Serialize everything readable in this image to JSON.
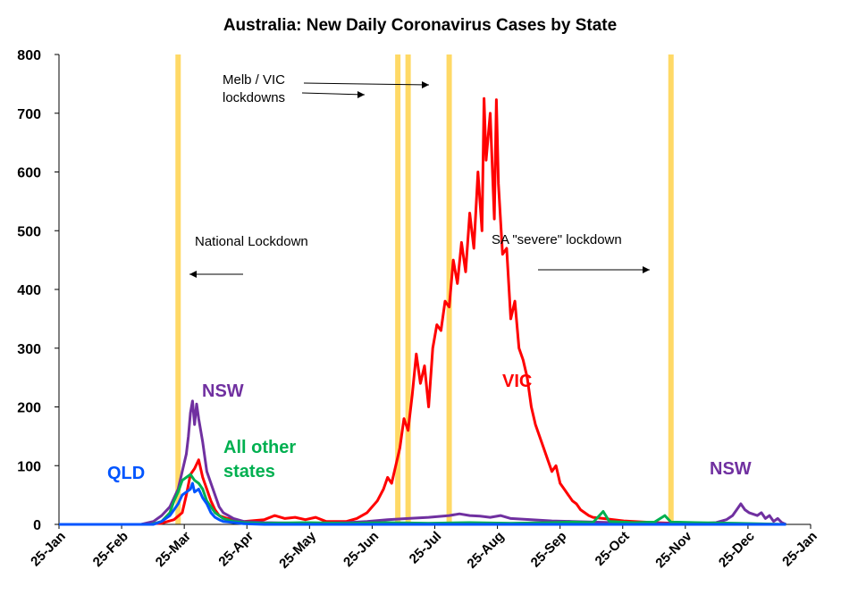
{
  "chart_data": {
    "type": "line",
    "title": "Australia: New Daily Coronavirus Cases by State",
    "xlabel": "",
    "ylabel": "",
    "ylim": [
      0,
      800
    ],
    "yticks": [
      0,
      100,
      200,
      300,
      400,
      500,
      600,
      700,
      800
    ],
    "x_tick_labels": [
      "25-Jan",
      "25-Feb",
      "25-Mar",
      "25-Apr",
      "25-May",
      "25-Jun",
      "25-Jul",
      "25-Aug",
      "25-Sep",
      "25-Oct",
      "25-Nov",
      "25-Dec",
      "25-Jan"
    ],
    "xlim_days": [
      0,
      366
    ],
    "grid": false,
    "lockdown_dates": [
      "2020-03-23",
      "2020-07-08",
      "2020-07-13",
      "2020-08-02",
      "2020-11-18"
    ],
    "annotations": [
      {
        "text": "Melb / VIC",
        "line2": "lockdowns"
      },
      {
        "text": "National Lockdown"
      },
      {
        "text": "SA \"severe\" lockdown"
      }
    ],
    "series": [
      {
        "name": "VIC",
        "color": "#ff0000",
        "points": [
          [
            0,
            0
          ],
          [
            40,
            0
          ],
          [
            50,
            2
          ],
          [
            56,
            8
          ],
          [
            60,
            20
          ],
          [
            62,
            50
          ],
          [
            64,
            85
          ],
          [
            66,
            95
          ],
          [
            68,
            110
          ],
          [
            70,
            80
          ],
          [
            72,
            60
          ],
          [
            74,
            40
          ],
          [
            76,
            25
          ],
          [
            78,
            15
          ],
          [
            82,
            10
          ],
          [
            90,
            5
          ],
          [
            100,
            8
          ],
          [
            105,
            15
          ],
          [
            110,
            10
          ],
          [
            115,
            12
          ],
          [
            120,
            8
          ],
          [
            125,
            12
          ],
          [
            130,
            5
          ],
          [
            140,
            5
          ],
          [
            145,
            10
          ],
          [
            150,
            20
          ],
          [
            155,
            40
          ],
          [
            158,
            60
          ],
          [
            160,
            80
          ],
          [
            162,
            70
          ],
          [
            164,
            100
          ],
          [
            166,
            130
          ],
          [
            168,
            180
          ],
          [
            170,
            160
          ],
          [
            172,
            220
          ],
          [
            174,
            290
          ],
          [
            176,
            240
          ],
          [
            178,
            270
          ],
          [
            180,
            200
          ],
          [
            182,
            300
          ],
          [
            184,
            340
          ],
          [
            186,
            330
          ],
          [
            188,
            380
          ],
          [
            190,
            370
          ],
          [
            192,
            450
          ],
          [
            194,
            410
          ],
          [
            196,
            480
          ],
          [
            198,
            430
          ],
          [
            200,
            530
          ],
          [
            202,
            470
          ],
          [
            204,
            600
          ],
          [
            206,
            500
          ],
          [
            207,
            725
          ],
          [
            208,
            620
          ],
          [
            210,
            700
          ],
          [
            212,
            520
          ],
          [
            213,
            723
          ],
          [
            214,
            580
          ],
          [
            216,
            460
          ],
          [
            218,
            470
          ],
          [
            220,
            350
          ],
          [
            222,
            380
          ],
          [
            224,
            300
          ],
          [
            226,
            280
          ],
          [
            228,
            250
          ],
          [
            230,
            200
          ],
          [
            232,
            170
          ],
          [
            234,
            150
          ],
          [
            236,
            130
          ],
          [
            238,
            110
          ],
          [
            240,
            90
          ],
          [
            242,
            100
          ],
          [
            244,
            70
          ],
          [
            246,
            60
          ],
          [
            248,
            50
          ],
          [
            250,
            40
          ],
          [
            252,
            35
          ],
          [
            254,
            25
          ],
          [
            256,
            20
          ],
          [
            258,
            15
          ],
          [
            260,
            12
          ],
          [
            265,
            10
          ],
          [
            270,
            8
          ],
          [
            275,
            6
          ],
          [
            280,
            5
          ],
          [
            290,
            3
          ],
          [
            300,
            2
          ],
          [
            320,
            1
          ],
          [
            350,
            0
          ]
        ]
      },
      {
        "name": "NSW",
        "color": "#7030a0",
        "points": [
          [
            0,
            0
          ],
          [
            40,
            0
          ],
          [
            46,
            5
          ],
          [
            50,
            15
          ],
          [
            54,
            30
          ],
          [
            56,
            45
          ],
          [
            58,
            60
          ],
          [
            60,
            90
          ],
          [
            62,
            120
          ],
          [
            63,
            150
          ],
          [
            64,
            190
          ],
          [
            65,
            210
          ],
          [
            66,
            170
          ],
          [
            67,
            205
          ],
          [
            68,
            180
          ],
          [
            70,
            140
          ],
          [
            72,
            90
          ],
          [
            74,
            70
          ],
          [
            76,
            50
          ],
          [
            78,
            30
          ],
          [
            80,
            20
          ],
          [
            85,
            10
          ],
          [
            90,
            5
          ],
          [
            100,
            3
          ],
          [
            120,
            2
          ],
          [
            140,
            3
          ],
          [
            150,
            5
          ],
          [
            160,
            8
          ],
          [
            170,
            10
          ],
          [
            180,
            12
          ],
          [
            190,
            15
          ],
          [
            195,
            18
          ],
          [
            200,
            15
          ],
          [
            205,
            14
          ],
          [
            210,
            12
          ],
          [
            215,
            15
          ],
          [
            220,
            10
          ],
          [
            230,
            8
          ],
          [
            240,
            6
          ],
          [
            250,
            5
          ],
          [
            260,
            4
          ],
          [
            270,
            3
          ],
          [
            290,
            2
          ],
          [
            310,
            1
          ],
          [
            320,
            3
          ],
          [
            325,
            8
          ],
          [
            328,
            15
          ],
          [
            330,
            25
          ],
          [
            332,
            35
          ],
          [
            334,
            25
          ],
          [
            336,
            20
          ],
          [
            340,
            15
          ],
          [
            342,
            20
          ],
          [
            344,
            10
          ],
          [
            346,
            15
          ],
          [
            348,
            5
          ],
          [
            350,
            10
          ],
          [
            352,
            3
          ],
          [
            354,
            0
          ]
        ]
      },
      {
        "name": "All other states",
        "color": "#00b050",
        "points": [
          [
            0,
            0
          ],
          [
            45,
            0
          ],
          [
            50,
            5
          ],
          [
            54,
            20
          ],
          [
            56,
            40
          ],
          [
            58,
            55
          ],
          [
            60,
            75
          ],
          [
            62,
            80
          ],
          [
            64,
            85
          ],
          [
            66,
            75
          ],
          [
            68,
            70
          ],
          [
            70,
            60
          ],
          [
            72,
            40
          ],
          [
            74,
            30
          ],
          [
            76,
            20
          ],
          [
            80,
            10
          ],
          [
            85,
            5
          ],
          [
            90,
            3
          ],
          [
            100,
            2
          ],
          [
            120,
            3
          ],
          [
            140,
            2
          ],
          [
            160,
            3
          ],
          [
            180,
            2
          ],
          [
            200,
            3
          ],
          [
            220,
            2
          ],
          [
            240,
            3
          ],
          [
            250,
            4
          ],
          [
            260,
            3
          ],
          [
            265,
            22
          ],
          [
            268,
            5
          ],
          [
            280,
            3
          ],
          [
            290,
            4
          ],
          [
            295,
            15
          ],
          [
            298,
            4
          ],
          [
            310,
            3
          ],
          [
            330,
            2
          ],
          [
            354,
            0
          ]
        ]
      },
      {
        "name": "QLD",
        "color": "#0055ff",
        "points": [
          [
            0,
            0
          ],
          [
            46,
            0
          ],
          [
            50,
            5
          ],
          [
            54,
            15
          ],
          [
            56,
            25
          ],
          [
            58,
            35
          ],
          [
            60,
            50
          ],
          [
            62,
            55
          ],
          [
            64,
            60
          ],
          [
            65,
            70
          ],
          [
            66,
            55
          ],
          [
            68,
            60
          ],
          [
            70,
            45
          ],
          [
            72,
            35
          ],
          [
            74,
            20
          ],
          [
            76,
            12
          ],
          [
            78,
            8
          ],
          [
            80,
            5
          ],
          [
            85,
            3
          ],
          [
            90,
            1
          ],
          [
            100,
            0
          ],
          [
            354,
            0
          ]
        ]
      }
    ]
  }
}
